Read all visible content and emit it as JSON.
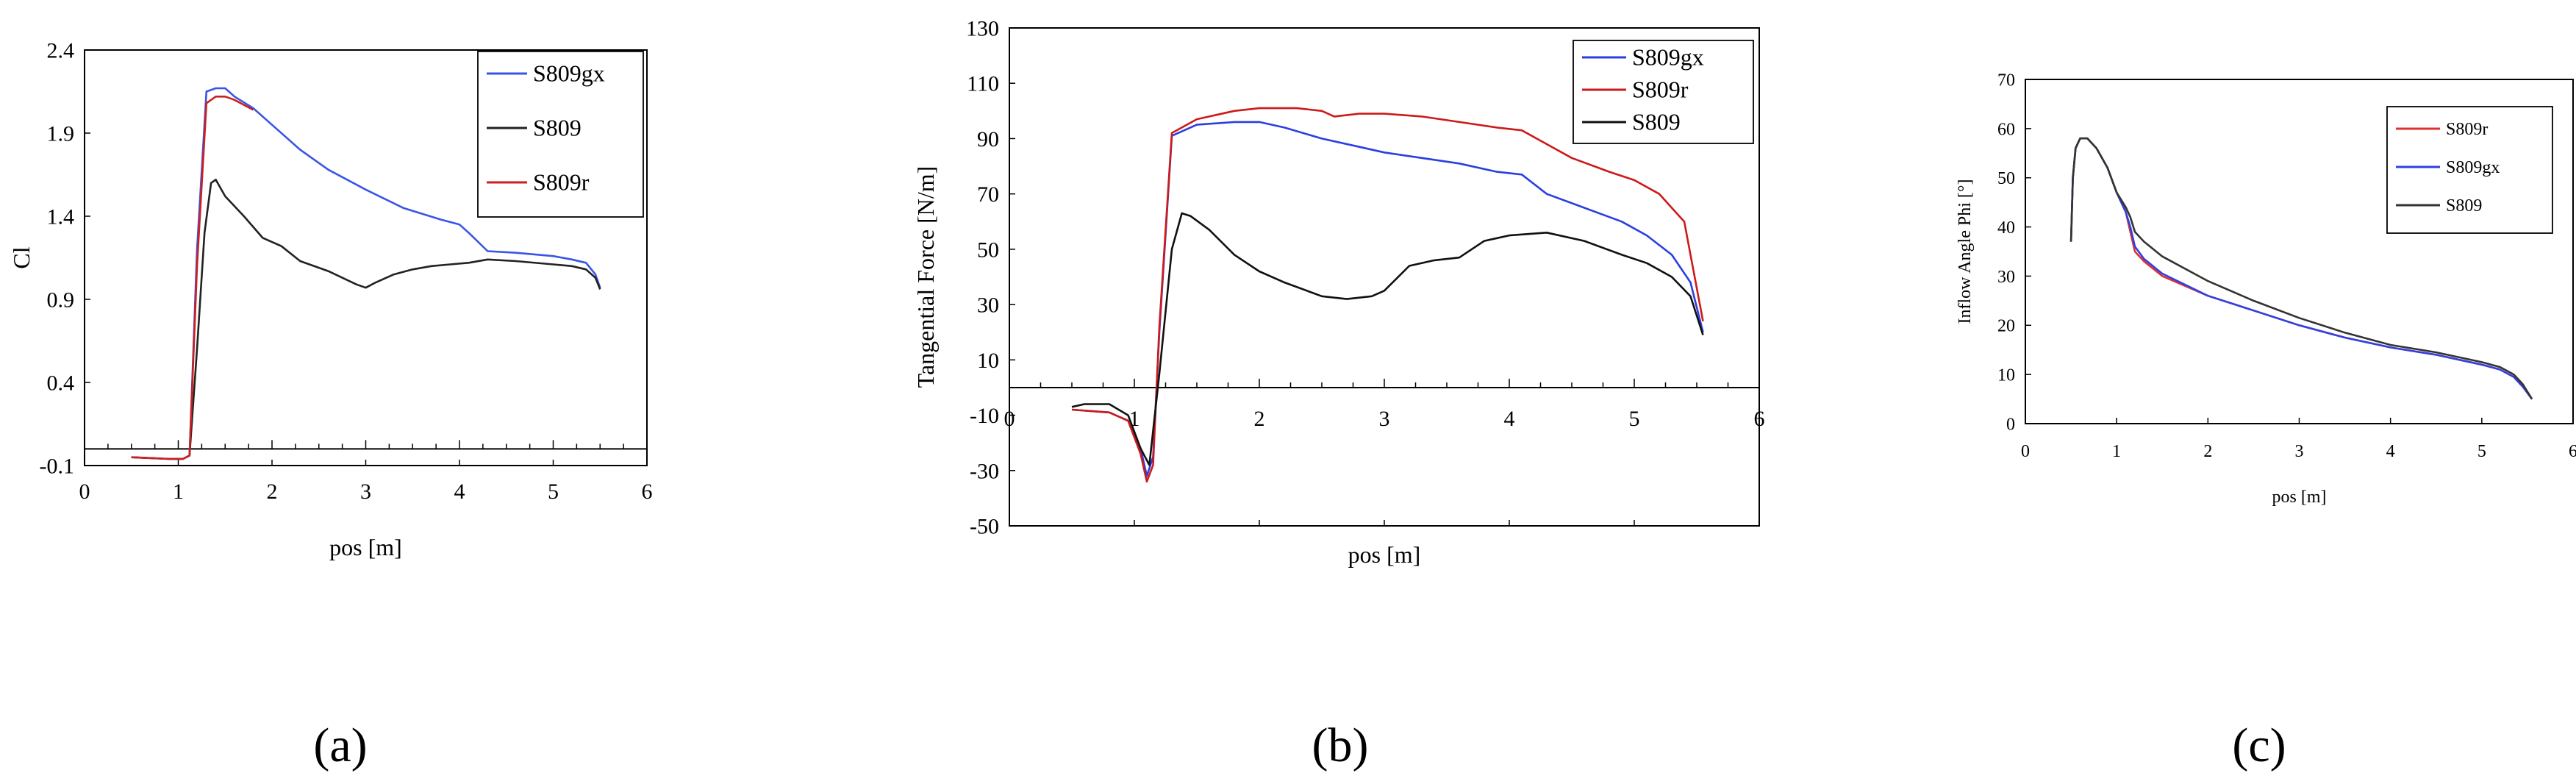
{
  "chart_data": [
    {
      "id": "a",
      "type": "line",
      "caption": "(a)",
      "xlabel": "pos [m]",
      "ylabel": "Cl",
      "xlim": [
        0,
        6
      ],
      "ylim": [
        -0.1,
        2.4
      ],
      "xticks": [
        "0",
        "1",
        "2",
        "3",
        "4",
        "5",
        "6"
      ],
      "yticks": [
        "-0.1",
        "0.4",
        "0.9",
        "1.4",
        "1.9",
        "2.4"
      ],
      "series": [
        {
          "name": "S809gx",
          "color": "#3a55e6",
          "x": [
            0.5,
            0.9,
            1.05,
            1.12,
            1.2,
            1.3,
            1.4,
            1.5,
            1.6,
            1.8,
            2.0,
            2.3,
            2.6,
            3.0,
            3.4,
            3.8,
            4.0,
            4.1,
            4.3,
            4.6,
            5.0,
            5.2,
            5.35,
            5.45,
            5.5
          ],
          "y": [
            -0.05,
            -0.06,
            -0.06,
            -0.04,
            1.2,
            2.15,
            2.17,
            2.17,
            2.12,
            2.05,
            1.95,
            1.8,
            1.68,
            1.56,
            1.45,
            1.38,
            1.35,
            1.3,
            1.19,
            1.18,
            1.16,
            1.14,
            1.12,
            1.05,
            0.97
          ]
        },
        {
          "name": "S809",
          "color": "#222222",
          "x": [
            0.5,
            0.9,
            1.05,
            1.12,
            1.2,
            1.28,
            1.35,
            1.4,
            1.5,
            1.7,
            1.9,
            2.1,
            2.3,
            2.6,
            2.9,
            3.0,
            3.1,
            3.3,
            3.5,
            3.7,
            3.9,
            4.1,
            4.3,
            4.6,
            5.0,
            5.2,
            5.35,
            5.45,
            5.5
          ],
          "y": [
            -0.05,
            -0.06,
            -0.06,
            -0.04,
            0.6,
            1.3,
            1.6,
            1.62,
            1.52,
            1.4,
            1.27,
            1.22,
            1.13,
            1.07,
            0.99,
            0.97,
            1.0,
            1.05,
            1.08,
            1.1,
            1.11,
            1.12,
            1.14,
            1.13,
            1.11,
            1.1,
            1.08,
            1.03,
            0.96
          ]
        },
        {
          "name": "S809r",
          "color": "#cc1f1f",
          "x": [
            0.5,
            0.9,
            1.05,
            1.12,
            1.2,
            1.3,
            1.4,
            1.5,
            1.6,
            1.8
          ],
          "y": [
            -0.05,
            -0.06,
            -0.06,
            -0.04,
            1.1,
            2.08,
            2.12,
            2.12,
            2.1,
            2.04
          ]
        }
      ]
    },
    {
      "id": "b",
      "type": "line",
      "caption": "(b)",
      "xlabel": "pos [m]",
      "ylabel": "Tangential Force [N/m]",
      "xlim": [
        0,
        6
      ],
      "ylim": [
        -50,
        130
      ],
      "xticks": [
        "0",
        "1",
        "2",
        "3",
        "4",
        "5",
        "6"
      ],
      "yticks": [
        "-50",
        "-30",
        "-10",
        "10",
        "30",
        "50",
        "70",
        "90",
        "110",
        "130"
      ],
      "series": [
        {
          "name": "S809gx",
          "color": "#2a3fe0",
          "x": [
            0.5,
            0.8,
            0.95,
            1.05,
            1.1,
            1.15,
            1.2,
            1.3,
            1.5,
            1.8,
            2.0,
            2.2,
            2.5,
            2.8,
            3.0,
            3.3,
            3.6,
            3.9,
            4.1,
            4.3,
            4.6,
            4.9,
            5.1,
            5.3,
            5.45,
            5.55
          ],
          "y": [
            -8,
            -9,
            -12,
            -22,
            -32,
            -25,
            20,
            91,
            95,
            96,
            96,
            94,
            90,
            87,
            85,
            83,
            81,
            78,
            77,
            70,
            65,
            60,
            55,
            48,
            38,
            20
          ]
        },
        {
          "name": "S809r",
          "color": "#cc1a1a",
          "x": [
            0.5,
            0.8,
            0.95,
            1.05,
            1.1,
            1.15,
            1.2,
            1.3,
            1.5,
            1.8,
            2.0,
            2.3,
            2.5,
            2.6,
            2.8,
            3.0,
            3.3,
            3.6,
            3.9,
            4.1,
            4.3,
            4.5,
            4.8,
            5.0,
            5.2,
            5.4,
            5.55
          ],
          "y": [
            -8,
            -9,
            -12,
            -24,
            -34,
            -28,
            22,
            92,
            97,
            100,
            101,
            101,
            100,
            98,
            99,
            99,
            98,
            96,
            94,
            93,
            88,
            83,
            78,
            75,
            70,
            60,
            24
          ]
        },
        {
          "name": "S809",
          "color": "#111111",
          "x": [
            0.5,
            0.6,
            0.8,
            0.95,
            1.05,
            1.12,
            1.2,
            1.3,
            1.38,
            1.45,
            1.6,
            1.8,
            2.0,
            2.2,
            2.5,
            2.7,
            2.9,
            3.0,
            3.2,
            3.4,
            3.6,
            3.8,
            4.0,
            4.3,
            4.6,
            4.9,
            5.1,
            5.3,
            5.45,
            5.55
          ],
          "y": [
            -7,
            -6,
            -6,
            -10,
            -22,
            -28,
            5,
            50,
            63,
            62,
            57,
            48,
            42,
            38,
            33,
            32,
            33,
            35,
            44,
            46,
            47,
            53,
            55,
            56,
            53,
            48,
            45,
            40,
            33,
            19
          ]
        }
      ]
    },
    {
      "id": "c",
      "type": "line",
      "caption": "(c)",
      "xlabel": "pos [m]",
      "ylabel": "Inflow Angle Phi [°]",
      "xlim": [
        0,
        6
      ],
      "ylim": [
        0,
        70
      ],
      "xticks": [
        "0",
        "1",
        "2",
        "3",
        "4",
        "5",
        "6"
      ],
      "yticks": [
        "0",
        "10",
        "20",
        "30",
        "40",
        "50",
        "60",
        "70"
      ],
      "series": [
        {
          "name": "S809r",
          "color": "#e03030",
          "x": [
            0.5,
            0.52,
            0.55,
            0.6,
            0.68,
            0.78,
            0.9,
            1.0,
            1.1,
            1.15,
            1.2,
            1.3,
            1.5,
            2.0,
            2.5,
            3.0,
            3.5,
            4.0,
            4.5,
            5.0,
            5.2,
            5.35,
            5.45,
            5.55
          ],
          "y": [
            37,
            50,
            56,
            58,
            58,
            56,
            52,
            47,
            43,
            39,
            35,
            33,
            30,
            26,
            23,
            20,
            17.5,
            15.5,
            14,
            12,
            11,
            9.5,
            7.5,
            5
          ]
        },
        {
          "name": "S809gx",
          "color": "#3040e0",
          "x": [
            0.5,
            0.52,
            0.55,
            0.6,
            0.68,
            0.78,
            0.9,
            1.0,
            1.1,
            1.15,
            1.2,
            1.3,
            1.5,
            2.0,
            2.5,
            3.0,
            3.5,
            4.0,
            4.5,
            5.0,
            5.2,
            5.35,
            5.45,
            5.55
          ],
          "y": [
            37,
            50,
            56,
            58,
            58,
            56,
            52,
            47,
            43,
            40,
            36,
            33.5,
            30.5,
            26,
            23,
            20,
            17.5,
            15.5,
            14,
            12,
            11,
            9.5,
            7.5,
            5
          ]
        },
        {
          "name": "S809",
          "color": "#333333",
          "x": [
            0.5,
            0.52,
            0.55,
            0.6,
            0.68,
            0.78,
            0.9,
            1.0,
            1.1,
            1.15,
            1.2,
            1.3,
            1.5,
            2.0,
            2.5,
            3.0,
            3.5,
            4.0,
            4.5,
            5.0,
            5.2,
            5.35,
            5.45,
            5.55
          ],
          "y": [
            37,
            50,
            56,
            58,
            58,
            56,
            52,
            47,
            44,
            42,
            39,
            37,
            34,
            29,
            25,
            21.5,
            18.5,
            16,
            14.5,
            12.5,
            11.5,
            10,
            8,
            5
          ]
        }
      ]
    }
  ]
}
